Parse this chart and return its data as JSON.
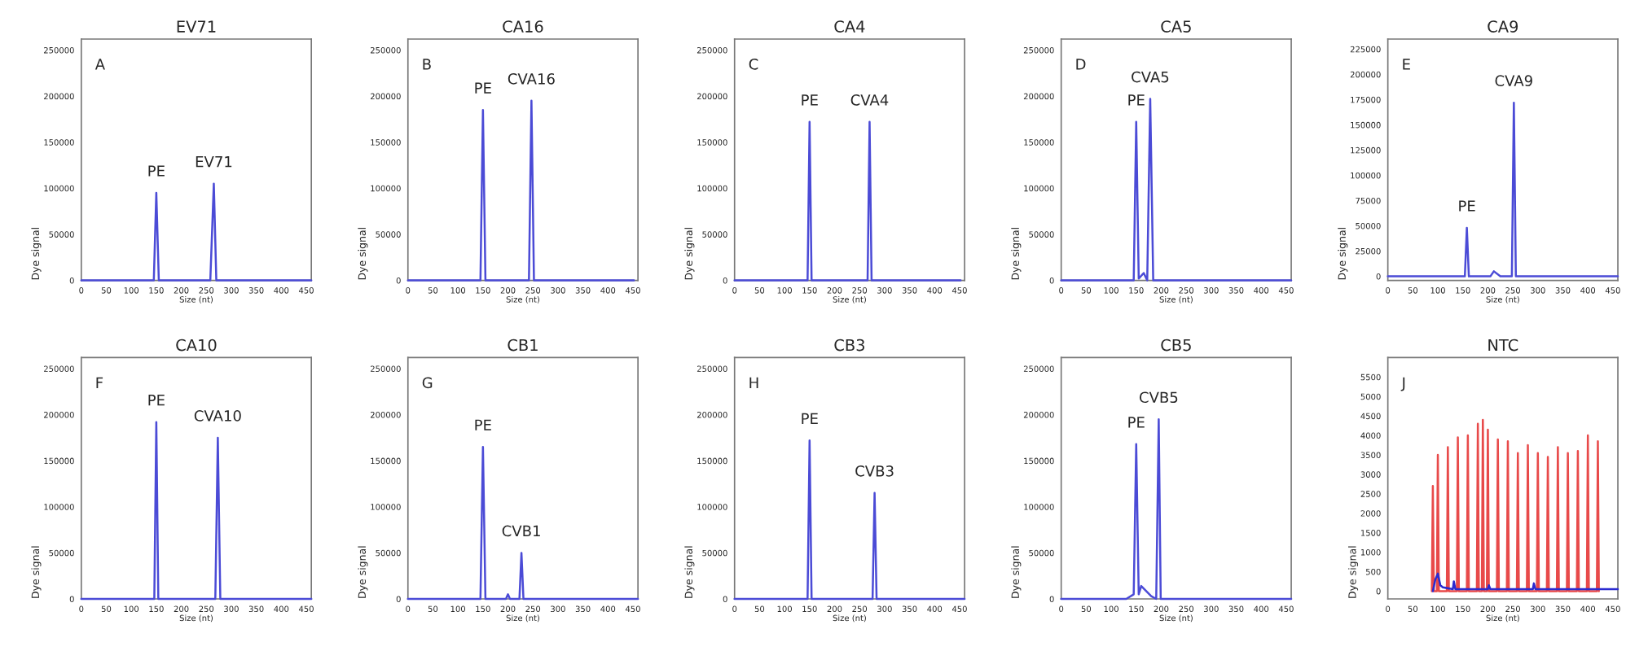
{
  "chart_data": [
    {
      "type": "line",
      "title": "EV71",
      "xlabel": "Size (nt)",
      "ylabel": "Dye signal",
      "xlim": [
        0,
        460
      ],
      "xticks": [
        0,
        50,
        100,
        150,
        200,
        250,
        300,
        350,
        400,
        450
      ],
      "ylim": [
        0,
        262000
      ],
      "yticks": [
        0,
        50000,
        100000,
        150000,
        200000,
        250000
      ],
      "annotations": [
        "A",
        {
          "text": "PE",
          "x": 150,
          "y": 95000
        },
        {
          "text": "EV71",
          "x": 265,
          "y": 105000
        }
      ],
      "series": [
        {
          "color": "#4b4bd6",
          "x": [
            0,
            145,
            150,
            155,
            258,
            265,
            270,
            460
          ],
          "values": [
            0,
            0,
            95000,
            0,
            0,
            105000,
            0,
            0
          ]
        }
      ]
    },
    {
      "type": "line",
      "title": "CA16",
      "xlabel": "Size (nt)",
      "ylabel": "Dye signal",
      "xlim": [
        0,
        460
      ],
      "xticks": [
        0,
        50,
        100,
        150,
        200,
        250,
        300,
        350,
        400,
        450
      ],
      "ylim": [
        0,
        262000
      ],
      "yticks": [
        0,
        50000,
        100000,
        150000,
        200000,
        250000
      ],
      "annotations": [
        "B",
        {
          "text": "PE",
          "x": 150,
          "y": 185000
        },
        {
          "text": "CVA16",
          "x": 247,
          "y": 195000
        }
      ],
      "series": [
        {
          "color": "#4b4bd6",
          "x": [
            0,
            145,
            150,
            155,
            242,
            247,
            252,
            452
          ],
          "values": [
            0,
            0,
            185000,
            0,
            0,
            195000,
            0,
            0
          ]
        }
      ]
    },
    {
      "type": "line",
      "title": "CA4",
      "xlabel": "Size (nt)",
      "ylabel": "Dye signal",
      "xlim": [
        0,
        460
      ],
      "xticks": [
        0,
        50,
        100,
        150,
        200,
        250,
        300,
        350,
        400,
        450
      ],
      "ylim": [
        0,
        262000
      ],
      "yticks": [
        0,
        50000,
        100000,
        150000,
        200000,
        250000
      ],
      "annotations": [
        "C",
        {
          "text": "PE",
          "x": 150,
          "y": 172000
        },
        {
          "text": "CVA4",
          "x": 270,
          "y": 172000
        }
      ],
      "series": [
        {
          "color": "#4b4bd6",
          "x": [
            0,
            146,
            150,
            154,
            266,
            270,
            274,
            452
          ],
          "values": [
            0,
            0,
            172000,
            0,
            0,
            172000,
            0,
            0
          ]
        }
      ]
    },
    {
      "type": "line",
      "title": "CA5",
      "xlabel": "Size (nt)",
      "ylabel": "Dye signal",
      "xlim": [
        0,
        460
      ],
      "xticks": [
        0,
        50,
        100,
        150,
        200,
        250,
        300,
        350,
        400,
        450
      ],
      "ylim": [
        0,
        262000
      ],
      "yticks": [
        0,
        50000,
        100000,
        150000,
        200000,
        250000
      ],
      "annotations": [
        "D",
        {
          "text": "PE",
          "x": 150,
          "y": 172000
        },
        {
          "text": "CVA5",
          "x": 178,
          "y": 197000
        }
      ],
      "series": [
        {
          "color": "#4b4bd6",
          "x": [
            0,
            145,
            150,
            155,
            165,
            172,
            178,
            184,
            460
          ],
          "values": [
            0,
            0,
            172000,
            2000,
            8000,
            0,
            197000,
            0,
            0
          ]
        }
      ]
    },
    {
      "type": "line",
      "title": "CA9",
      "xlabel": "Size (nt)",
      "ylabel": "Dye signal",
      "xlim": [
        0,
        460
      ],
      "xticks": [
        0,
        50,
        100,
        150,
        200,
        250,
        300,
        350,
        400,
        450
      ],
      "ylim": [
        -4000,
        235000
      ],
      "yticks": [
        0,
        25000,
        50000,
        75000,
        100000,
        125000,
        150000,
        175000,
        200000,
        225000
      ],
      "annotations": [
        "E",
        {
          "text": "PE",
          "x": 158,
          "y": 48000
        },
        {
          "text": "CVA9",
          "x": 252,
          "y": 172000
        }
      ],
      "series": [
        {
          "color": "#4b4bd6",
          "x": [
            0,
            154,
            158,
            162,
            205,
            212,
            225,
            248,
            252,
            256,
            460
          ],
          "values": [
            0,
            0,
            48000,
            0,
            0,
            5000,
            0,
            0,
            172000,
            0,
            0
          ]
        }
      ]
    },
    {
      "type": "line",
      "title": "CA10",
      "xlabel": "Size (nt)",
      "ylabel": "Dye signal",
      "xlim": [
        0,
        460
      ],
      "xticks": [
        0,
        50,
        100,
        150,
        200,
        250,
        300,
        350,
        400,
        450
      ],
      "ylim": [
        0,
        262000
      ],
      "yticks": [
        0,
        50000,
        100000,
        150000,
        200000,
        250000
      ],
      "annotations": [
        "F",
        {
          "text": "PE",
          "x": 150,
          "y": 192000
        },
        {
          "text": "CVA10",
          "x": 273,
          "y": 175000
        }
      ],
      "series": [
        {
          "color": "#4b4bd6",
          "x": [
            0,
            146,
            150,
            154,
            268,
            273,
            278,
            460
          ],
          "values": [
            0,
            0,
            192000,
            0,
            0,
            175000,
            0,
            0
          ]
        }
      ]
    },
    {
      "type": "line",
      "title": "CB1",
      "xlabel": "Size (nt)",
      "ylabel": "Dye signal",
      "xlim": [
        0,
        460
      ],
      "xticks": [
        0,
        50,
        100,
        150,
        200,
        250,
        300,
        350,
        400,
        450
      ],
      "ylim": [
        0,
        262000
      ],
      "yticks": [
        0,
        50000,
        100000,
        150000,
        200000,
        250000
      ],
      "annotations": [
        "G",
        {
          "text": "PE",
          "x": 150,
          "y": 165000
        },
        {
          "text": "CVB1",
          "x": 227,
          "y": 50000
        }
      ],
      "series": [
        {
          "color": "#4b4bd6",
          "x": [
            0,
            145,
            150,
            155,
            196,
            200,
            204,
            223,
            227,
            231,
            460
          ],
          "values": [
            0,
            0,
            165000,
            0,
            0,
            5000,
            0,
            0,
            50000,
            0,
            0
          ]
        }
      ]
    },
    {
      "type": "line",
      "title": "CB3",
      "xlabel": "Size (nt)",
      "ylabel": "Dye signal",
      "xlim": [
        0,
        460
      ],
      "xticks": [
        0,
        50,
        100,
        150,
        200,
        250,
        300,
        350,
        400,
        450
      ],
      "ylim": [
        0,
        262000
      ],
      "yticks": [
        0,
        50000,
        100000,
        150000,
        200000,
        250000
      ],
      "annotations": [
        "H",
        {
          "text": "PE",
          "x": 150,
          "y": 172000
        },
        {
          "text": "CVB3",
          "x": 280,
          "y": 115000
        }
      ],
      "series": [
        {
          "color": "#4b4bd6",
          "x": [
            0,
            146,
            150,
            154,
            276,
            280,
            284,
            460
          ],
          "values": [
            0,
            0,
            172000,
            0,
            0,
            115000,
            0,
            0
          ]
        }
      ]
    },
    {
      "type": "line",
      "title": "CB5",
      "xlabel": "Size (nt)",
      "ylabel": "Dye signal",
      "xlim": [
        0,
        460
      ],
      "xticks": [
        0,
        50,
        100,
        150,
        200,
        250,
        300,
        350,
        400,
        450
      ],
      "ylim": [
        0,
        262000
      ],
      "yticks": [
        0,
        50000,
        100000,
        150000,
        200000,
        250000
      ],
      "annotations": [
        {
          "text": "PE",
          "x": 150,
          "y": 168000
        },
        {
          "text": "CVB5",
          "x": 195,
          "y": 195000
        }
      ],
      "series": [
        {
          "color": "#4b4bd6",
          "x": [
            0,
            130,
            145,
            150,
            155,
            160,
            180,
            190,
            195,
            199,
            460
          ],
          "values": [
            0,
            0,
            5000,
            168000,
            5000,
            14000,
            3000,
            0,
            195000,
            0,
            0
          ]
        }
      ]
    },
    {
      "type": "line",
      "title": "NTC",
      "xlabel": "Size (nt)",
      "ylabel": "Dye signal",
      "xlim": [
        0,
        460
      ],
      "xticks": [
        0,
        50,
        100,
        150,
        200,
        250,
        300,
        350,
        400,
        450
      ],
      "ylim": [
        -200,
        6000
      ],
      "yticks": [
        0,
        500,
        1000,
        1500,
        2000,
        2500,
        3000,
        3500,
        4000,
        4500,
        5000,
        5500
      ],
      "annotations": [
        "J"
      ],
      "series": [
        {
          "color": "#e84a4a",
          "x": [
            88,
            90,
            92,
            98,
            100,
            102,
            118,
            120,
            122,
            138,
            140,
            142,
            158,
            160,
            162,
            178,
            180,
            182,
            188,
            190,
            192,
            198,
            200,
            202,
            218,
            220,
            222,
            238,
            240,
            242,
            258,
            260,
            262,
            278,
            280,
            282,
            298,
            300,
            302,
            318,
            320,
            322,
            338,
            340,
            342,
            358,
            360,
            362,
            378,
            380,
            382,
            398,
            400,
            402,
            418,
            420,
            422
          ],
          "values": [
            0,
            2700,
            0,
            0,
            3500,
            0,
            0,
            3700,
            0,
            0,
            3950,
            0,
            0,
            4000,
            0,
            0,
            4300,
            0,
            0,
            4400,
            0,
            0,
            4150,
            0,
            0,
            3900,
            0,
            0,
            3850,
            0,
            0,
            3550,
            0,
            0,
            3750,
            0,
            0,
            3550,
            0,
            0,
            3450,
            0,
            0,
            3700,
            0,
            0,
            3550,
            0,
            0,
            3600,
            0,
            0,
            4000,
            0,
            0,
            3850,
            0
          ]
        },
        {
          "color": "#2a2ad0",
          "x": [
            90,
            95,
            100,
            105,
            110,
            130,
            132,
            135,
            160,
            200,
            202,
            205,
            290,
            292,
            295,
            350,
            400,
            460
          ],
          "values": [
            0,
            300,
            450,
            150,
            100,
            50,
            250,
            50,
            50,
            50,
            150,
            50,
            50,
            200,
            50,
            50,
            50,
            50
          ]
        }
      ]
    }
  ]
}
